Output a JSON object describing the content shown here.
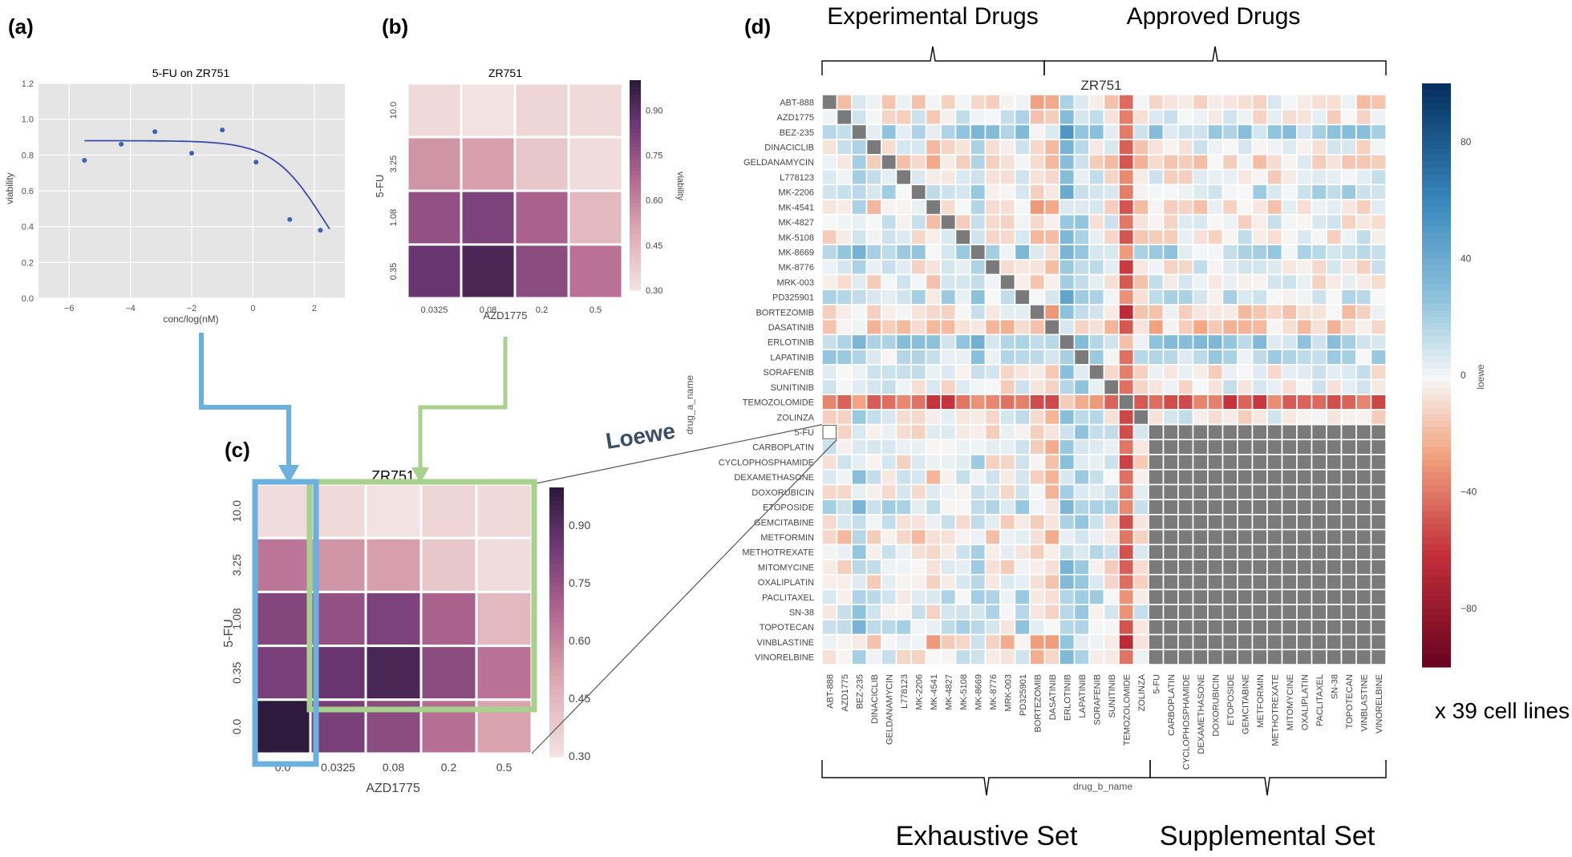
{
  "panels": {
    "a": "(a)",
    "b": "(b)",
    "c": "(c)",
    "d": "(d)"
  },
  "annotations": {
    "loewe_arrow_label": "Loewe",
    "cell_lines_note": "x 39 cell lines",
    "experimental_drugs": "Experimental Drugs",
    "approved_drugs": "Approved Drugs",
    "exhaustive_set": "Exhaustive Set",
    "supplemental_set": "Supplemental Set"
  },
  "colors": {
    "dose_response_curve": "#3b4ba8",
    "dose_response_points": "#3b63b5",
    "plot_background": "#e5e5e5",
    "arrow_blue": "#6cb0e0",
    "arrow_green": "#a9d18e",
    "diagonal_missing_cell": "#7a7a7a",
    "heatmap_purple_low": "#f3e5e3",
    "heatmap_purple_high": "#2e1a3c",
    "loewe_negative": "#67001f",
    "loewe_zero": "#f7f7f7",
    "loewe_positive": "#053061"
  },
  "chart_data": [
    {
      "id": "a",
      "type": "scatter",
      "title": "5-FU on ZR751",
      "xlabel": "conc/log(nM)",
      "ylabel": "viability",
      "xlim": [
        -7,
        3
      ],
      "ylim": [
        0.0,
        1.2
      ],
      "xticks": [
        -6,
        -4,
        -2,
        0,
        2
      ],
      "yticks": [
        0.0,
        0.2,
        0.4,
        0.6,
        0.8,
        1.0,
        1.2
      ],
      "grid": true,
      "points": [
        {
          "x": -5.5,
          "y": 0.77
        },
        {
          "x": -4.3,
          "y": 0.86
        },
        {
          "x": -3.2,
          "y": 0.93
        },
        {
          "x": -2.0,
          "y": 0.81
        },
        {
          "x": -1.0,
          "y": 0.94
        },
        {
          "x": 0.1,
          "y": 0.76
        },
        {
          "x": 1.2,
          "y": 0.44
        },
        {
          "x": 2.2,
          "y": 0.38
        }
      ],
      "fit_curve": {
        "top": 0.88,
        "bottom": 0.0,
        "ic50": 2.3,
        "slope": 0.55,
        "x_range": [
          -5.5,
          2.5
        ]
      }
    },
    {
      "id": "b",
      "type": "heatmap",
      "title": "ZR751",
      "xlabel": "AZD1775",
      "ylabel": "5-FU",
      "x": [
        "0.0325",
        "0.08",
        "0.2",
        "0.5"
      ],
      "y": [
        "10.0",
        "3.25",
        "1.08",
        "0.35"
      ],
      "values": [
        [
          0.34,
          0.31,
          0.35,
          0.34
        ],
        [
          0.56,
          0.53,
          0.4,
          0.33
        ],
        [
          0.76,
          0.82,
          0.7,
          0.45
        ],
        [
          0.87,
          0.94,
          0.78,
          0.65
        ]
      ],
      "colorbar": {
        "label": "viability",
        "ticks": [
          0.3,
          0.45,
          0.6,
          0.75,
          0.9
        ],
        "tick_labels": [
          "0.30",
          "0.45",
          "0.60",
          "0.75",
          "0.90"
        ],
        "range": [
          0.3,
          1.0
        ]
      }
    },
    {
      "id": "c",
      "type": "heatmap",
      "title": "ZR751",
      "xlabel": "AZD1775",
      "ylabel": "5-FU",
      "x": [
        "0.0",
        "0.0325",
        "0.08",
        "0.2",
        "0.5"
      ],
      "y": [
        "10.0",
        "3.25",
        "1.08",
        "0.35",
        "0.0"
      ],
      "values": [
        [
          0.33,
          0.34,
          0.31,
          0.35,
          0.34
        ],
        [
          0.64,
          0.56,
          0.53,
          0.4,
          0.33
        ],
        [
          0.8,
          0.76,
          0.82,
          0.7,
          0.45
        ],
        [
          0.83,
          0.87,
          0.94,
          0.78,
          0.65
        ],
        [
          1.0,
          0.83,
          0.78,
          0.66,
          0.52
        ]
      ],
      "colorbar": {
        "label": "",
        "ticks": [
          0.3,
          0.45,
          0.6,
          0.75,
          0.9
        ],
        "tick_labels": [
          "0.30",
          "0.45",
          "0.60",
          "0.75",
          "0.90"
        ],
        "range": [
          0.3,
          1.0
        ]
      }
    },
    {
      "id": "d",
      "type": "heatmap",
      "title": "ZR751",
      "xlabel": "drug_b_name",
      "ylabel": "drug_a_name",
      "colorbar": {
        "label": "loewe",
        "ticks": [
          -80,
          -40,
          0,
          40,
          80
        ],
        "tick_labels": [
          "−80",
          "−40",
          "0",
          "40",
          "80"
        ],
        "range": [
          -100,
          100
        ]
      },
      "x": [
        "ABT-888",
        "AZD1775",
        "BEZ-235",
        "DINACICLIB",
        "GELDANAMYCIN",
        "L778123",
        "MK-2206",
        "MK-4541",
        "MK-4827",
        "MK-5108",
        "MK-8669",
        "MK-8776",
        "MRK-003",
        "PD325901",
        "BORTEZOMIB",
        "DASATINIB",
        "ERLOTINIB",
        "LAPATINIB",
        "SORAFENIB",
        "SUNITINIB",
        "TEMOZOLOMIDE",
        "ZOLINZA",
        "5-FU",
        "CARBOPLATIN",
        "CYCLOPHOSPHAMIDE",
        "DEXAMETHASONE",
        "DOXORUBICIN",
        "ETOPOSIDE",
        "GEMCITABINE",
        "METFORMIN",
        "METHOTREXATE",
        "MITOMYCINE",
        "OXALIPLATIN",
        "PACLITAXEL",
        "SN-38",
        "TOPOTECAN",
        "VINBLASTINE",
        "VINORELBINE"
      ],
      "y": [
        "ABT-888",
        "AZD1775",
        "BEZ-235",
        "DINACICLIB",
        "GELDANAMYCIN",
        "L778123",
        "MK-2206",
        "MK-4541",
        "MK-4827",
        "MK-5108",
        "MK-8669",
        "MK-8776",
        "MRK-003",
        "PD325901",
        "BORTEZOMIB",
        "DASATINIB",
        "ERLOTINIB",
        "LAPATINIB",
        "SORAFENIB",
        "SUNITINIB",
        "TEMOZOLOMIDE",
        "ZOLINZA",
        "5-FU",
        "CARBOPLATIN",
        "CYCLOPHOSPHAMIDE",
        "DEXAMETHASONE",
        "DOXORUBICIN",
        "ETOPOSIDE",
        "GEMCITABINE",
        "METFORMIN",
        "METHOTREXATE",
        "MITOMYCINE",
        "OXALIPLATIN",
        "PACLITAXEL",
        "SN-38",
        "TOPOTECAN",
        "VINBLASTINE",
        "VINORELBINE"
      ],
      "note": "Diagonal cells and 5-FU..VINORELBINE x 5-FU..VINORELBINE block are missing (gray). Row TEMOZOLOMIDE and column TEMOZOLOMIDE are strongly negative; DASATINIB mostly negative; ERLOTINIB, BEZ-235, LAPATINIB, MK-2206 mostly positive. Column 5-FU is highlighted at row 5-FU (empty square).",
      "row_bias": {
        "ABT-888": -6,
        "BEZ-235": 18,
        "DASATINIB": -14,
        "ERLOTINIB": 20,
        "LAPATINIB": 12,
        "MK-2206": 10,
        "MK-8669": 14,
        "TEMOZOLOMIDE": -45,
        "VINBLASTINE": -10,
        "MK-4541": -6,
        "BORTEZOMIB": -8,
        "PD325901": 10,
        "ETOPOSIDE": 10,
        "SN-38": 6,
        "TOPOTECAN": 8,
        "PACLITAXEL": 6,
        "GELDANAMYCIN": -6,
        "METFORMIN": -6
      },
      "col_bias": {
        "TEMOZOLOMIDE": -45,
        "DASATINIB": -14,
        "ERLOTINIB": 22,
        "LAPATINIB": 14,
        "BEZ-235": 16,
        "MK-8669": 10,
        "PD325901": 8,
        "BORTEZOMIB": -10,
        "MK-4541": -6,
        "ZOLINZA": -4,
        "SORAFENIB": 4
      }
    }
  ]
}
